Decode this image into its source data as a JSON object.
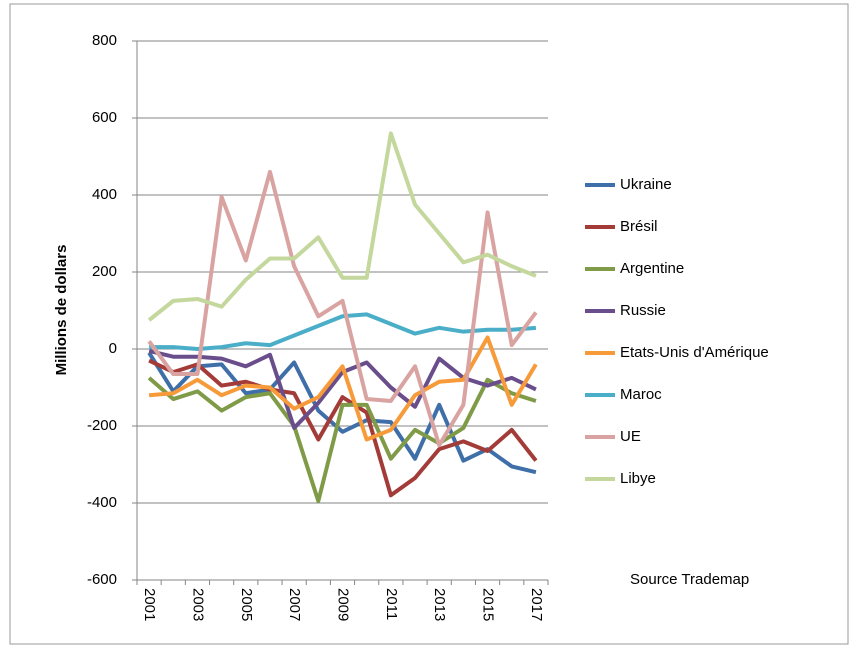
{
  "chart_data": {
    "type": "line",
    "y_label": "Millions de dollars",
    "annotation": "Source  Trademap",
    "categories": [
      "2001",
      null,
      "2003",
      null,
      "2005",
      null,
      "2007",
      null,
      "2009",
      null,
      "2011",
      null,
      "2013",
      null,
      "2015",
      null,
      "2017"
    ],
    "series": [
      {
        "name": "Ukraine",
        "color": "#3f6fa8",
        "values": [
          -10,
          -110,
          -45,
          -40,
          -115,
          -105,
          -35,
          -160,
          -215,
          -185,
          -190,
          -285,
          -145,
          -290,
          -260,
          -305,
          -320
        ]
      },
      {
        "name": "Brésil",
        "color": "#a33b38",
        "values": [
          -30,
          -60,
          -40,
          -95,
          -85,
          -105,
          -115,
          -235,
          -125,
          -165,
          -380,
          -335,
          -260,
          -240,
          -265,
          -210,
          -290
        ]
      },
      {
        "name": "Argentine",
        "color": "#7f9b47",
        "values": [
          -75,
          -130,
          -110,
          -160,
          -125,
          -115,
          -200,
          -395,
          -145,
          -145,
          -285,
          -210,
          -245,
          -205,
          -80,
          -115,
          -135
        ]
      },
      {
        "name": "Russie",
        "color": "#6a4e8c",
        "values": [
          -5,
          -20,
          -20,
          -25,
          -45,
          -15,
          -205,
          -140,
          -60,
          -35,
          -100,
          -150,
          -25,
          -75,
          -95,
          -75,
          -105
        ]
      },
      {
        "name": "Etats-Unis d'Amérique",
        "color": "#f79a3a",
        "values": [
          -120,
          -115,
          -80,
          -120,
          -95,
          -100,
          -155,
          -125,
          -45,
          -235,
          -210,
          -120,
          -85,
          -80,
          30,
          -145,
          -40
        ]
      },
      {
        "name": "Maroc",
        "color": "#4aaec8",
        "values": [
          5,
          5,
          0,
          5,
          15,
          10,
          35,
          60,
          85,
          90,
          65,
          40,
          55,
          45,
          50,
          50,
          55
        ]
      },
      {
        "name": "UE",
        "color": "#d9a3a2",
        "values": [
          20,
          -65,
          -65,
          395,
          230,
          460,
          215,
          85,
          125,
          -130,
          -135,
          -45,
          -250,
          -145,
          355,
          10,
          95
        ]
      },
      {
        "name": "Libye",
        "color": "#c4d79c",
        "values": [
          75,
          125,
          130,
          110,
          180,
          235,
          235,
          290,
          185,
          185,
          560,
          375,
          300,
          225,
          245,
          215,
          190
        ]
      }
    ],
    "ylim": [
      -600,
      800
    ],
    "yticks": [
      -600,
      -400,
      -200,
      0,
      200,
      400,
      600,
      800
    ],
    "grid": true,
    "legend": "right"
  }
}
